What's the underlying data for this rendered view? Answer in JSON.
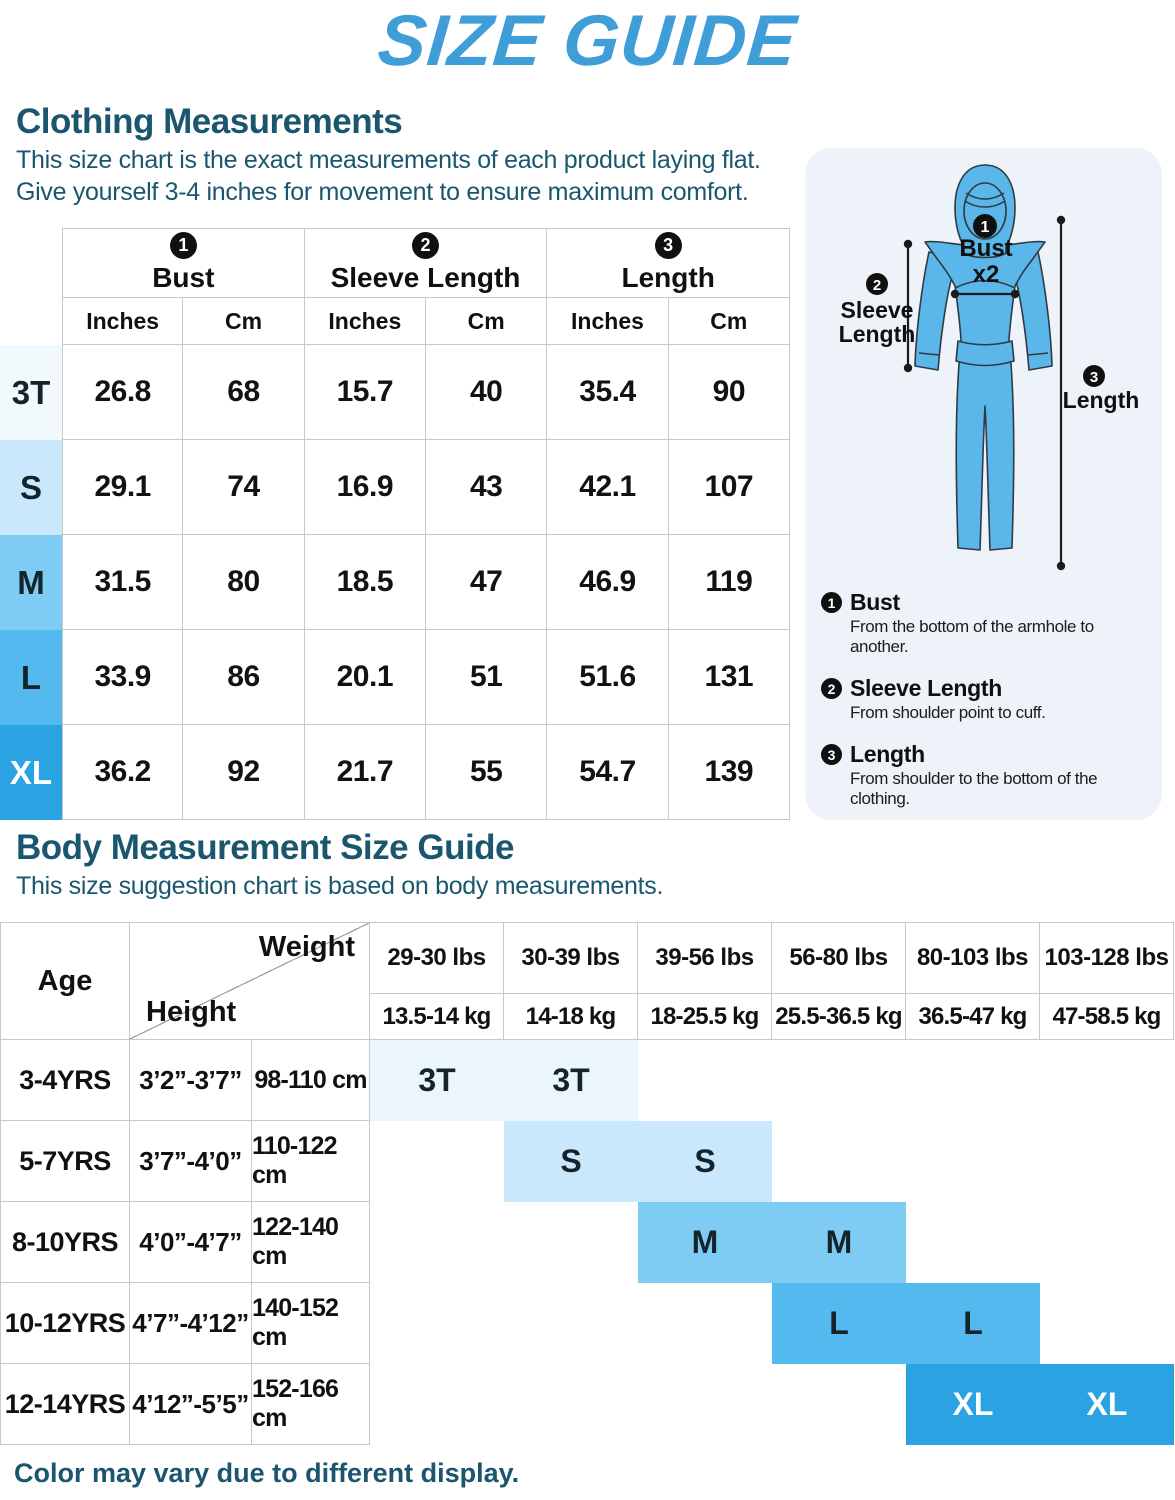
{
  "title": "SIZE GUIDE",
  "footer_note": "Color may vary due to different display.",
  "colors": {
    "accent_blue": "#3f9ed8",
    "heading_teal": "#1a566d",
    "panel_bg": "#edf3f8",
    "figure_blue": "#5bb6e9",
    "size_3t": "#f2f9fd",
    "size_s": "#c9e8fb",
    "size_m": "#7ecbf3",
    "size_l": "#53b9ee",
    "size_xl": "#2ba3e3"
  },
  "clothing_section": {
    "heading": "Clothing Measurements",
    "description_line1": "This size chart is the exact measurements of each product laying flat.",
    "description_line2": "Give yourself 3-4 inches for movement to ensure maximum comfort.",
    "table": {
      "groups": [
        {
          "num": "1",
          "label": "Bust"
        },
        {
          "num": "2",
          "label": "Sleeve Length"
        },
        {
          "num": "3",
          "label": "Length"
        }
      ],
      "unit_headers": [
        "Inches",
        "Cm",
        "Inches",
        "Cm",
        "Inches",
        "Cm"
      ],
      "rows": [
        {
          "size": "3T",
          "color": "#f2f9fd",
          "values": [
            "26.8",
            "68",
            "15.7",
            "40",
            "35.4",
            "90"
          ]
        },
        {
          "size": "S",
          "color": "#c9e8fb",
          "values": [
            "29.1",
            "74",
            "16.9",
            "43",
            "42.1",
            "107"
          ]
        },
        {
          "size": "M",
          "color": "#7ecbf3",
          "values": [
            "31.5",
            "80",
            "18.5",
            "47",
            "46.9",
            "119"
          ]
        },
        {
          "size": "L",
          "color": "#53b9ee",
          "values": [
            "33.9",
            "86",
            "20.1",
            "51",
            "51.6",
            "131"
          ]
        },
        {
          "size": "XL",
          "color": "#2ba3e3",
          "text_color": "#ffffff",
          "values": [
            "36.2",
            "92",
            "21.7",
            "55",
            "54.7",
            "139"
          ]
        }
      ]
    }
  },
  "diagram": {
    "figure": {
      "badge1": "1",
      "bust_label": "Bust",
      "bust_x2": "x2",
      "badge2": "2",
      "sleeve_line1": "Sleeve",
      "sleeve_line2": "Length",
      "badge3": "3",
      "length_label": "Length"
    },
    "legend": [
      {
        "num": "1",
        "title": "Bust",
        "desc": "From the bottom of the armhole to another."
      },
      {
        "num": "2",
        "title": "Sleeve Length",
        "desc": "From shoulder point to cuff."
      },
      {
        "num": "3",
        "title": "Length",
        "desc": "From shoulder to the bottom of the clothing."
      }
    ]
  },
  "body_section": {
    "heading": "Body Measurement Size Guide",
    "description": "This size suggestion chart is based on body measurements.",
    "table": {
      "age_header": "Age",
      "weight_header": "Weight",
      "height_header": "Height",
      "weight_lbs": [
        "29-30 lbs",
        "30-39 lbs",
        "39-56 lbs",
        "56-80 lbs",
        "80-103 lbs",
        "103-128 lbs"
      ],
      "weight_kg": [
        "13.5-14 kg",
        "14-18 kg",
        "18-25.5 kg",
        "25.5-36.5 kg",
        "36.5-47 kg",
        "47-58.5 kg"
      ],
      "rows": [
        {
          "age": "3-4YRS",
          "height_ft": "3’2”-3’7”",
          "height_cm": "98-110 cm",
          "size": "3T",
          "band_start_col": 0,
          "color": "#eaf5fc"
        },
        {
          "age": "5-7YRS",
          "height_ft": "3’7”-4’0”",
          "height_cm": "110-122 cm",
          "size": "S",
          "band_start_col": 1,
          "color": "#c9e8fb"
        },
        {
          "age": "8-10YRS",
          "height_ft": "4’0”-4’7”",
          "height_cm": "122-140 cm",
          "size": "M",
          "band_start_col": 2,
          "color": "#7ecbf3"
        },
        {
          "age": "10-12YRS",
          "height_ft": "4’7”-4’12”",
          "height_cm": "140-152 cm",
          "size": "L",
          "band_start_col": 3,
          "color": "#53b9ee"
        },
        {
          "age": "12-14YRS",
          "height_ft": "4’12”-5’5”",
          "height_cm": "152-166 cm",
          "size": "XL",
          "band_start_col": 4,
          "color": "#2ba3e3",
          "text_color": "#ffffff"
        }
      ]
    }
  }
}
